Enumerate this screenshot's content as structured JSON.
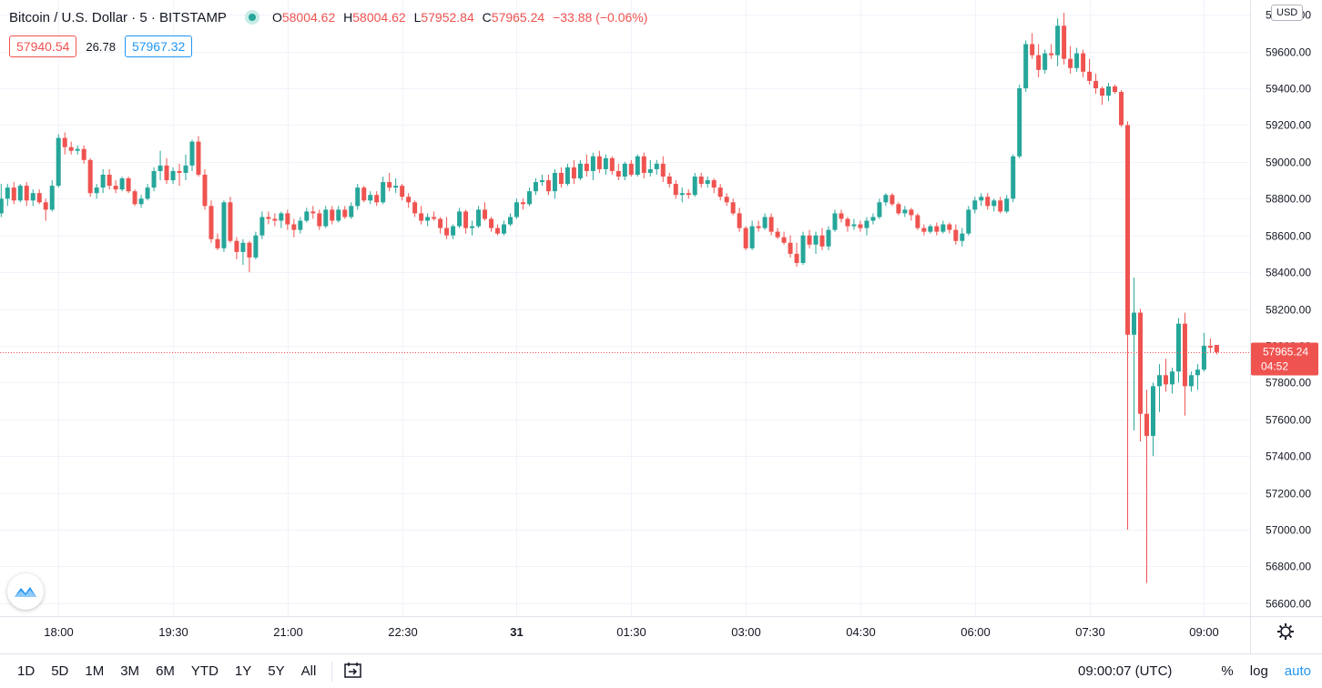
{
  "symbol": {
    "name": "Bitcoin / U.S. Dollar · 5 · BITSTAMP",
    "open_label": "O",
    "open": "58004.62",
    "high_label": "H",
    "high": "58004.62",
    "low_label": "L",
    "low": "57952.84",
    "close_label": "C",
    "close": "57965.24",
    "change": "−33.88 (−0.06%)"
  },
  "quote": {
    "bid": "57940.54",
    "spread": "26.78",
    "ask": "57967.32"
  },
  "currency": "USD",
  "price_tag": {
    "price": "57965.24",
    "countdown": "04:52"
  },
  "toolbar": {
    "timeframes": [
      "1D",
      "5D",
      "1M",
      "3M",
      "6M",
      "YTD",
      "1Y",
      "5Y",
      "All"
    ],
    "clock": "09:00:07 (UTC)",
    "percent": "%",
    "log": "log",
    "auto": "auto"
  },
  "colors": {
    "up": "#26a69a",
    "down": "#ef5350",
    "grid": "#f0f3fa",
    "accent": "#2196f3"
  },
  "chart_data": {
    "type": "candlestick",
    "interval": "5 minutes",
    "y_ticks": [
      56600,
      56800,
      57000,
      57200,
      57400,
      57600,
      57800,
      58000,
      58200,
      58400,
      58600,
      58800,
      59000,
      59200,
      59400,
      59600,
      59800
    ],
    "y_tick_labels": [
      "56600.00",
      "56800.00",
      "57000.00",
      "57200.00",
      "57400.00",
      "57600.00",
      "57800.00",
      "58000.00",
      "58200.00",
      "58400.00",
      "58600.00",
      "58800.00",
      "59000.00",
      "59200.00",
      "59400.00",
      "59600.00",
      "59800.00"
    ],
    "ylim": [
      56530,
      59880
    ],
    "x_ticks": [
      "18:00",
      "19:30",
      "21:00",
      "22:30",
      "31",
      "01:30",
      "03:00",
      "04:30",
      "06:00",
      "07:30",
      "09:00"
    ],
    "x_tick_index": [
      9,
      27,
      45,
      63,
      81,
      99,
      117,
      135,
      153,
      171,
      189
    ],
    "last_price": 57965.24,
    "candles": [
      [
        58720,
        58880,
        58700,
        58800
      ],
      [
        58800,
        58880,
        58760,
        58860
      ],
      [
        58860,
        58890,
        58770,
        58790
      ],
      [
        58790,
        58880,
        58780,
        58870
      ],
      [
        58870,
        58890,
        58760,
        58790
      ],
      [
        58790,
        58850,
        58760,
        58830
      ],
      [
        58830,
        58850,
        58770,
        58780
      ],
      [
        58780,
        58800,
        58680,
        58740
      ],
      [
        58740,
        58900,
        58730,
        58870
      ],
      [
        58870,
        59150,
        58860,
        59130
      ],
      [
        59130,
        59160,
        59040,
        59080
      ],
      [
        59080,
        59110,
        59040,
        59060
      ],
      [
        59060,
        59090,
        59040,
        59070
      ],
      [
        59070,
        59090,
        58990,
        59010
      ],
      [
        59010,
        59020,
        58810,
        58830
      ],
      [
        58830,
        58880,
        58800,
        58860
      ],
      [
        58860,
        58960,
        58830,
        58930
      ],
      [
        58930,
        58960,
        58850,
        58870
      ],
      [
        58870,
        58900,
        58830,
        58850
      ],
      [
        58850,
        58920,
        58840,
        58910
      ],
      [
        58910,
        58920,
        58830,
        58840
      ],
      [
        58840,
        58850,
        58760,
        58770
      ],
      [
        58770,
        58820,
        58750,
        58800
      ],
      [
        58800,
        58880,
        58790,
        58860
      ],
      [
        58860,
        58970,
        58840,
        58950
      ],
      [
        58950,
        59060,
        58900,
        58980
      ],
      [
        58980,
        59020,
        58880,
        58900
      ],
      [
        58900,
        58970,
        58880,
        58950
      ],
      [
        58950,
        58990,
        58870,
        58940
      ],
      [
        58940,
        59040,
        58900,
        58980
      ],
      [
        58980,
        59120,
        58950,
        59110
      ],
      [
        59110,
        59140,
        58920,
        58930
      ],
      [
        58930,
        58960,
        58740,
        58760
      ],
      [
        58760,
        58790,
        58560,
        58580
      ],
      [
        58580,
        58610,
        58520,
        58530
      ],
      [
        58530,
        58790,
        58510,
        58780
      ],
      [
        58780,
        58810,
        58560,
        58570
      ],
      [
        58570,
        58590,
        58470,
        58510
      ],
      [
        58510,
        58580,
        58440,
        58560
      ],
      [
        58560,
        58570,
        58400,
        58480
      ],
      [
        58480,
        58620,
        58470,
        58600
      ],
      [
        58600,
        58730,
        58580,
        58700
      ],
      [
        58700,
        58730,
        58660,
        58690
      ],
      [
        58690,
        58720,
        58650,
        58680
      ],
      [
        58680,
        58730,
        58640,
        58720
      ],
      [
        58720,
        58740,
        58630,
        58660
      ],
      [
        58660,
        58690,
        58590,
        58630
      ],
      [
        58630,
        58700,
        58610,
        58680
      ],
      [
        58680,
        58750,
        58670,
        58730
      ],
      [
        58730,
        58760,
        58690,
        58720
      ],
      [
        58720,
        58740,
        58630,
        58650
      ],
      [
        58650,
        58760,
        58640,
        58740
      ],
      [
        58740,
        58760,
        58660,
        58680
      ],
      [
        58680,
        58760,
        58670,
        58740
      ],
      [
        58740,
        58760,
        58690,
        58700
      ],
      [
        58700,
        58780,
        58690,
        58760
      ],
      [
        58760,
        58880,
        58740,
        58860
      ],
      [
        58860,
        58870,
        58780,
        58790
      ],
      [
        58790,
        58840,
        58770,
        58820
      ],
      [
        58820,
        58840,
        58760,
        58780
      ],
      [
        58780,
        58920,
        58770,
        58890
      ],
      [
        58890,
        58940,
        58840,
        58860
      ],
      [
        58860,
        58910,
        58830,
        58870
      ],
      [
        58870,
        58880,
        58790,
        58810
      ],
      [
        58810,
        58830,
        58750,
        58780
      ],
      [
        58780,
        58790,
        58700,
        58720
      ],
      [
        58720,
        58760,
        58660,
        58680
      ],
      [
        58680,
        58720,
        58650,
        58700
      ],
      [
        58700,
        58730,
        58680,
        58690
      ],
      [
        58690,
        58700,
        58610,
        58640
      ],
      [
        58640,
        58700,
        58580,
        58600
      ],
      [
        58600,
        58660,
        58580,
        58650
      ],
      [
        58650,
        58750,
        58640,
        58730
      ],
      [
        58730,
        58740,
        58610,
        58640
      ],
      [
        58640,
        58680,
        58600,
        58650
      ],
      [
        58650,
        58760,
        58640,
        58740
      ],
      [
        58740,
        58780,
        58680,
        58690
      ],
      [
        58690,
        58700,
        58620,
        58640
      ],
      [
        58640,
        58660,
        58600,
        58610
      ],
      [
        58610,
        58680,
        58600,
        58660
      ],
      [
        58660,
        58720,
        58650,
        58700
      ],
      [
        58700,
        58800,
        58690,
        58780
      ],
      [
        58780,
        58800,
        58740,
        58770
      ],
      [
        58770,
        58860,
        58760,
        58840
      ],
      [
        58840,
        58910,
        58820,
        58890
      ],
      [
        58890,
        58930,
        58870,
        58900
      ],
      [
        58900,
        58930,
        58820,
        58840
      ],
      [
        58840,
        58960,
        58800,
        58940
      ],
      [
        58940,
        58970,
        58860,
        58880
      ],
      [
        58880,
        58990,
        58870,
        58970
      ],
      [
        58970,
        59010,
        58880,
        58910
      ],
      [
        58910,
        59010,
        58900,
        58990
      ],
      [
        58990,
        59040,
        58920,
        58950
      ],
      [
        58950,
        59050,
        58900,
        59030
      ],
      [
        59030,
        59060,
        58940,
        58960
      ],
      [
        58960,
        59040,
        58930,
        59020
      ],
      [
        59020,
        59030,
        58930,
        58950
      ],
      [
        58950,
        58990,
        58900,
        58920
      ],
      [
        58920,
        59000,
        58900,
        58990
      ],
      [
        58990,
        59010,
        58920,
        58930
      ],
      [
        58930,
        59040,
        58920,
        59030
      ],
      [
        59030,
        59050,
        58910,
        58940
      ],
      [
        58940,
        59010,
        58920,
        58960
      ],
      [
        58960,
        59010,
        58930,
        58990
      ],
      [
        58990,
        59030,
        58890,
        58920
      ],
      [
        58920,
        58940,
        58860,
        58880
      ],
      [
        58880,
        58900,
        58800,
        58820
      ],
      [
        58820,
        58860,
        58780,
        58830
      ],
      [
        58830,
        58850,
        58800,
        58820
      ],
      [
        58820,
        58940,
        58810,
        58920
      ],
      [
        58920,
        58940,
        58860,
        58880
      ],
      [
        58880,
        58920,
        58860,
        58900
      ],
      [
        58900,
        58910,
        58830,
        58860
      ],
      [
        58860,
        58880,
        58790,
        58810
      ],
      [
        58810,
        58830,
        58760,
        58780
      ],
      [
        58780,
        58800,
        58710,
        58720
      ],
      [
        58720,
        58750,
        58620,
        58640
      ],
      [
        58640,
        58650,
        58520,
        58530
      ],
      [
        58530,
        58680,
        58520,
        58650
      ],
      [
        58650,
        58680,
        58620,
        58640
      ],
      [
        58640,
        58720,
        58630,
        58700
      ],
      [
        58700,
        58720,
        58600,
        58620
      ],
      [
        58620,
        58640,
        58580,
        58590
      ],
      [
        58590,
        58620,
        58550,
        58560
      ],
      [
        58560,
        58600,
        58480,
        58500
      ],
      [
        58500,
        58560,
        58430,
        58450
      ],
      [
        58450,
        58620,
        58440,
        58600
      ],
      [
        58600,
        58630,
        58530,
        58550
      ],
      [
        58550,
        58620,
        58500,
        58600
      ],
      [
        58600,
        58640,
        58520,
        58540
      ],
      [
        58540,
        58650,
        58520,
        58630
      ],
      [
        58630,
        58740,
        58620,
        58720
      ],
      [
        58720,
        58740,
        58670,
        58690
      ],
      [
        58690,
        58700,
        58620,
        58650
      ],
      [
        58650,
        58690,
        58630,
        58660
      ],
      [
        58660,
        58680,
        58620,
        58640
      ],
      [
        58640,
        58700,
        58600,
        58680
      ],
      [
        58680,
        58720,
        58660,
        58700
      ],
      [
        58700,
        58800,
        58690,
        58780
      ],
      [
        58780,
        58830,
        58760,
        58820
      ],
      [
        58820,
        58830,
        58760,
        58770
      ],
      [
        58770,
        58780,
        58710,
        58720
      ],
      [
        58720,
        58760,
        58700,
        58740
      ],
      [
        58740,
        58750,
        58680,
        58710
      ],
      [
        58710,
        58720,
        58630,
        58640
      ],
      [
        58640,
        58660,
        58600,
        58620
      ],
      [
        58620,
        58660,
        58610,
        58650
      ],
      [
        58650,
        58670,
        58600,
        58620
      ],
      [
        58620,
        58680,
        58610,
        58660
      ],
      [
        58660,
        58670,
        58610,
        58630
      ],
      [
        58630,
        58660,
        58550,
        58570
      ],
      [
        58570,
        58640,
        58540,
        58610
      ],
      [
        58610,
        58760,
        58600,
        58740
      ],
      [
        58740,
        58810,
        58720,
        58790
      ],
      [
        58790,
        58830,
        58760,
        58810
      ],
      [
        58810,
        58830,
        58740,
        58760
      ],
      [
        58760,
        58800,
        58730,
        58790
      ],
      [
        58790,
        58810,
        58720,
        58730
      ],
      [
        58730,
        58820,
        58720,
        58800
      ],
      [
        58800,
        59040,
        58780,
        59030
      ],
      [
        59030,
        59420,
        59020,
        59400
      ],
      [
        59400,
        59660,
        59380,
        59640
      ],
      [
        59640,
        59700,
        59560,
        59580
      ],
      [
        59580,
        59640,
        59460,
        59500
      ],
      [
        59500,
        59610,
        59480,
        59590
      ],
      [
        59590,
        59640,
        59560,
        59580
      ],
      [
        59580,
        59780,
        59520,
        59740
      ],
      [
        59740,
        59810,
        59530,
        59560
      ],
      [
        59560,
        59630,
        59480,
        59510
      ],
      [
        59510,
        59620,
        59490,
        59590
      ],
      [
        59590,
        59610,
        59460,
        59490
      ],
      [
        59490,
        59560,
        59420,
        59440
      ],
      [
        59440,
        59480,
        59370,
        59400
      ],
      [
        59400,
        59410,
        59310,
        59360
      ],
      [
        59360,
        59430,
        59330,
        59410
      ],
      [
        59410,
        59420,
        59370,
        59380
      ],
      [
        59380,
        59390,
        59190,
        59200
      ],
      [
        59200,
        59220,
        57000,
        58060
      ],
      [
        58060,
        58370,
        57540,
        58180
      ],
      [
        58180,
        58200,
        57480,
        57630
      ],
      [
        57630,
        57760,
        56710,
        57510
      ],
      [
        57510,
        57800,
        57400,
        57780
      ],
      [
        57780,
        57900,
        57640,
        57840
      ],
      [
        57840,
        57930,
        57750,
        57790
      ],
      [
        57790,
        57880,
        57740,
        57860
      ],
      [
        57860,
        58150,
        57800,
        58120
      ],
      [
        58120,
        58180,
        57620,
        57780
      ],
      [
        57780,
        57860,
        57750,
        57840
      ],
      [
        57840,
        57900,
        57760,
        57870
      ],
      [
        57870,
        58070,
        57860,
        58000
      ],
      [
        58000,
        58040,
        57960,
        57990
      ],
      [
        58004.62,
        58004.62,
        57952.84,
        57965.24
      ]
    ]
  }
}
